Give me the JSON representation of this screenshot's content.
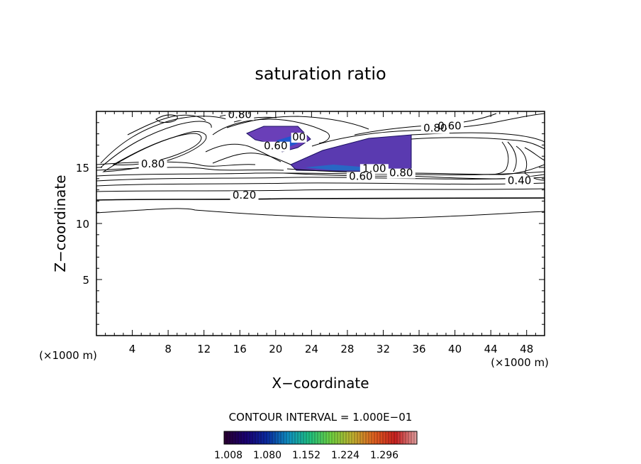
{
  "chart_data": {
    "type": "contour",
    "title": "saturation ratio",
    "xlabel": "X−coordinate",
    "ylabel": "Z−coordinate",
    "x_unit_label": "(×1000 m)",
    "y_unit_label": "(×1000 m)",
    "xlim": [
      0,
      50
    ],
    "ylim": [
      0,
      20
    ],
    "x_ticks": [
      4,
      8,
      12,
      16,
      20,
      24,
      28,
      32,
      36,
      40,
      44,
      48
    ],
    "y_ticks": [
      5,
      10,
      15
    ],
    "contour_interval_text": "CONTOUR INTERVAL = 1.000E−01",
    "contour_labels": [
      {
        "text": "0.80",
        "x": 16.0,
        "z": 19.4
      },
      {
        "text": "0.80",
        "x": 37.8,
        "z": 18.2
      },
      {
        "text": "0.60",
        "x": 39.4,
        "z": 18.4
      },
      {
        "text": "0.80",
        "x": 6.3,
        "z": 15.0
      },
      {
        "text": "0.60",
        "x": 20.0,
        "z": 16.6
      },
      {
        "text": "00",
        "x": 22.6,
        "z": 17.4
      },
      {
        "text": "1.00",
        "x": 31.0,
        "z": 14.6
      },
      {
        "text": "0.60",
        "x": 29.5,
        "z": 13.9
      },
      {
        "text": "0.80",
        "x": 34.0,
        "z": 14.2
      },
      {
        "text": "0.40",
        "x": 47.2,
        "z": 13.5
      },
      {
        "text": "0.20",
        "x": 16.5,
        "z": 12.2
      }
    ],
    "colorbar": {
      "ticks": [
        "1.008",
        "1.080",
        "1.152",
        "1.224",
        "1.296"
      ],
      "range": [
        1.008,
        1.35
      ],
      "colors": [
        "#2a0030",
        "#1a0070",
        "#0a2aa0",
        "#1090c0",
        "#20c080",
        "#70d040",
        "#c0b030",
        "#e06020",
        "#c82020",
        "#e0a0a0"
      ]
    },
    "filled_regions": [
      {
        "x": [
          22.0,
          35.0
        ],
        "z": [
          14.9,
          17.8
        ],
        "value_range": [
          1.008,
          1.1
        ]
      },
      {
        "x": [
          17.0,
          23.0
        ],
        "z": [
          16.5,
          18.6
        ],
        "value_range": [
          1.008,
          1.1
        ]
      }
    ],
    "grid": false
  }
}
